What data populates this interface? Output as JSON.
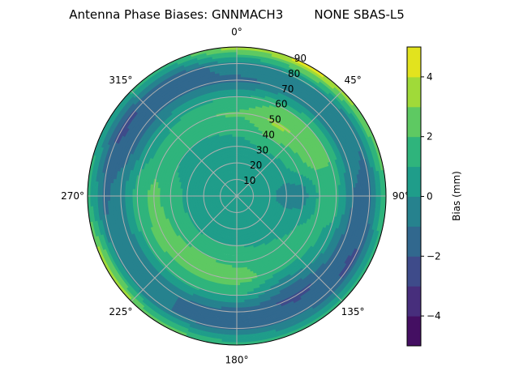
{
  "chart_data": {
    "type": "heatmap",
    "subtype": "polar-filled-contour",
    "title": "Antenna Phase Biases: GNNMACH3        NONE SBAS-L5",
    "theta_direction": "clockwise",
    "theta_zero": "top",
    "theta_ticks": [
      "0°",
      "45°",
      "90°",
      "135°",
      "180°",
      "225°",
      "270°",
      "315°"
    ],
    "theta_tick_values": [
      0,
      45,
      90,
      135,
      180,
      225,
      270,
      315
    ],
    "r_ticks": [
      "10",
      "20",
      "30",
      "40",
      "50",
      "60",
      "70",
      "80",
      "90"
    ],
    "r_tick_values": [
      10,
      20,
      30,
      40,
      50,
      60,
      70,
      80,
      90
    ],
    "rlim": [
      0,
      90
    ],
    "grid": true,
    "colorbar": {
      "label": "Bias (mm)",
      "levels": [
        -5,
        -4,
        -3,
        -2,
        -1,
        0,
        1,
        2,
        3,
        4,
        5
      ],
      "ticks": [
        "4",
        "2",
        "0",
        "−2",
        "−4"
      ],
      "tick_values": [
        4,
        2,
        0,
        -2,
        -4
      ],
      "colormap": "viridis",
      "colors": [
        "#440f62",
        "#472e7c",
        "#3e4b8a",
        "#31688e",
        "#26828e",
        "#1f9d8a",
        "#2fb47c",
        "#5ec962",
        "#a0da39",
        "#e2e31e"
      ]
    },
    "azimuths": [
      0,
      30,
      60,
      90,
      120,
      150,
      180,
      210,
      240,
      270,
      300,
      330
    ],
    "radii": [
      0,
      10,
      20,
      30,
      40,
      50,
      60,
      70,
      80,
      90
    ],
    "values": [
      [
        0.5,
        0.5,
        0.5,
        0.6,
        1.2,
        2.2,
        1.0,
        -1.2,
        -0.5,
        3.5
      ],
      [
        0.5,
        0.5,
        0.5,
        0.8,
        2.0,
        3.2,
        2.0,
        -0.8,
        0.0,
        4.5
      ],
      [
        0.5,
        0.5,
        0.5,
        0.5,
        1.5,
        2.5,
        2.2,
        -0.5,
        -1.0,
        3.0
      ],
      [
        0.5,
        0.5,
        0.3,
        -0.5,
        -0.5,
        1.2,
        1.5,
        -1.0,
        -1.2,
        2.0
      ],
      [
        0.5,
        0.5,
        0.5,
        0.5,
        1.0,
        1.5,
        0.5,
        -1.5,
        -2.2,
        1.5
      ],
      [
        0.5,
        0.5,
        0.5,
        0.7,
        1.5,
        1.5,
        -0.5,
        -2.2,
        -1.5,
        1.5
      ],
      [
        0.5,
        0.5,
        0.5,
        1.0,
        1.8,
        2.5,
        1.0,
        -1.5,
        -1.2,
        1.5
      ],
      [
        0.5,
        0.5,
        0.5,
        1.0,
        2.0,
        2.5,
        1.2,
        -1.0,
        -1.0,
        2.5
      ],
      [
        0.5,
        0.5,
        0.5,
        0.8,
        1.8,
        2.5,
        1.5,
        -0.8,
        -0.5,
        4.0
      ],
      [
        0.5,
        0.5,
        0.5,
        0.8,
        1.5,
        2.3,
        1.5,
        -0.5,
        -1.2,
        1.5
      ],
      [
        0.5,
        0.5,
        0.5,
        0.6,
        1.0,
        1.5,
        0.5,
        -1.5,
        -2.2,
        1.0
      ],
      [
        0.5,
        0.5,
        0.5,
        0.5,
        1.0,
        1.8,
        0.8,
        -1.2,
        -1.8,
        1.5
      ]
    ]
  }
}
